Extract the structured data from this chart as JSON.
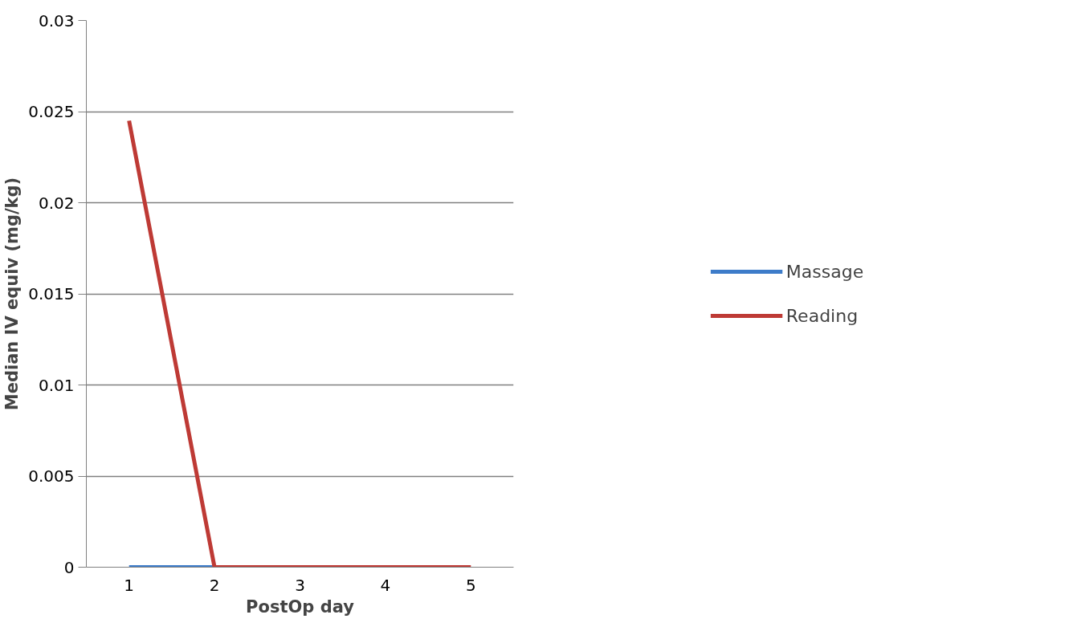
{
  "chart_data": {
    "type": "line",
    "xlabel": "PostOp day",
    "ylabel": "Median IV equiv (mg/kg)",
    "categories": [
      "1",
      "2",
      "3",
      "4",
      "5"
    ],
    "series": [
      {
        "name": "Massage",
        "color": "#3d7cc9",
        "values": [
          0,
          0,
          null,
          null,
          null
        ]
      },
      {
        "name": "Reading",
        "color": "#be3a35",
        "values": [
          0.0245,
          0,
          0,
          0,
          0
        ]
      }
    ],
    "ylim": [
      0,
      0.03
    ],
    "yticks": [
      {
        "value": 0,
        "label": "0"
      },
      0.005,
      0.01,
      0.015,
      0.02,
      0.025,
      0.03
    ],
    "grid": "y",
    "legend": "right",
    "marker": "none",
    "line_style": "solid"
  }
}
